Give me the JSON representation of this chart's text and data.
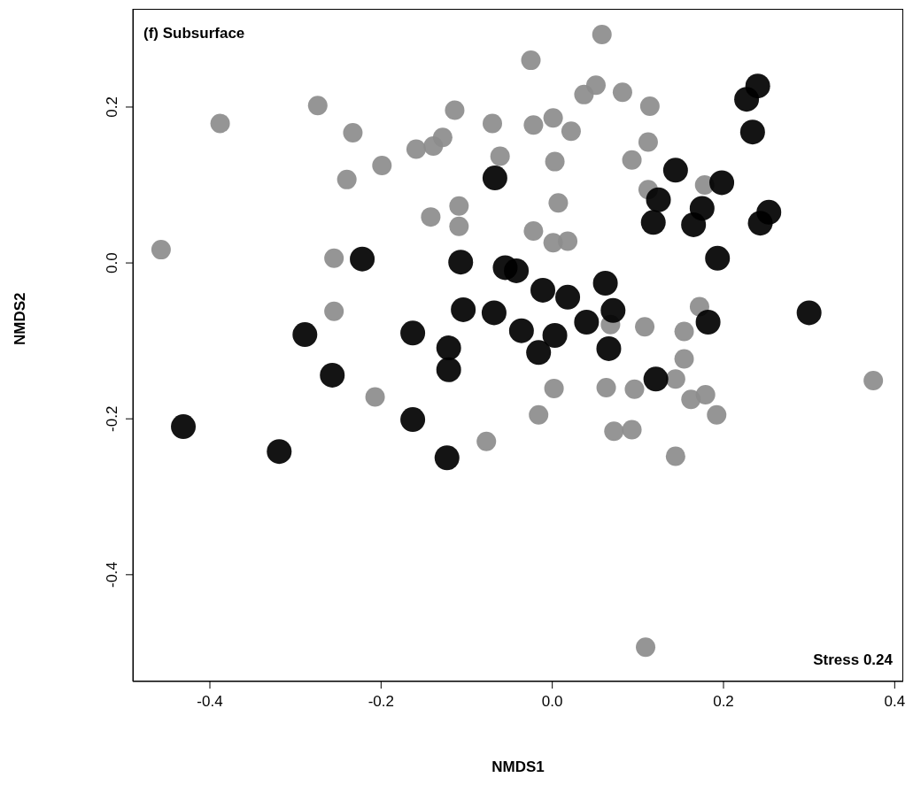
{
  "chart_data": {
    "type": "scatter",
    "title": "(f) Subsurface",
    "xlabel": "NMDS1",
    "ylabel": "NMDS2",
    "annotations": [
      "Stress 0.24"
    ],
    "marker": "circle",
    "xlim": [
      -0.49,
      0.41
    ],
    "ylim": [
      -0.537,
      0.326
    ],
    "xticks": [
      -0.4,
      -0.2,
      {
        "value": 0,
        "label": "0.0"
      },
      0.2,
      0.4
    ],
    "yticks": [
      -0.4,
      -0.2,
      {
        "value": 0,
        "label": "0.0"
      },
      0.2
    ],
    "series": [
      {
        "color": "#8c8c8c",
        "x": [
          -0.457,
          -0.388,
          -0.274,
          -0.233,
          -0.24,
          -0.199,
          -0.255,
          -0.255,
          -0.207,
          -0.159,
          -0.139,
          -0.128,
          -0.114,
          -0.142,
          -0.109,
          -0.109,
          -0.07,
          -0.061,
          -0.025,
          -0.022,
          0.001,
          0.003,
          0.007,
          0.022,
          -0.022,
          0.001,
          0.018,
          0.037,
          0.051,
          0.058,
          0.082,
          0.114,
          0.112,
          0.093,
          0.112,
          0.178,
          -0.077,
          -0.016,
          0.002,
          0.063,
          0.072,
          0.093,
          0.068,
          0.108,
          0.096,
          0.144,
          0.154,
          0.154,
          0.162,
          0.179,
          0.192,
          0.144,
          0.172,
          0.375,
          0.109
        ],
        "values": [
          0.017,
          0.179,
          0.202,
          0.167,
          0.107,
          0.125,
          0.006,
          -0.062,
          -0.172,
          0.146,
          0.15,
          0.161,
          0.196,
          0.059,
          0.073,
          0.047,
          0.179,
          0.137,
          0.26,
          0.177,
          0.186,
          0.13,
          0.077,
          0.169,
          0.041,
          0.026,
          0.028,
          0.216,
          0.228,
          0.293,
          0.219,
          0.201,
          0.155,
          0.132,
          0.094,
          0.1,
          -0.229,
          -0.195,
          -0.161,
          -0.16,
          -0.216,
          -0.214,
          -0.079,
          -0.082,
          -0.162,
          -0.149,
          -0.123,
          -0.088,
          -0.175,
          -0.169,
          -0.195,
          -0.248,
          -0.056,
          -0.151,
          -0.493
        ]
      },
      {
        "color": "#000000",
        "x": [
          -0.431,
          -0.319,
          -0.289,
          -0.257,
          -0.222,
          -0.163,
          -0.163,
          -0.121,
          -0.121,
          -0.123,
          -0.107,
          -0.104,
          -0.068,
          -0.067,
          -0.055,
          -0.042,
          -0.036,
          -0.011,
          -0.016,
          0.003,
          0.018,
          0.04,
          0.062,
          0.071,
          0.066,
          0.121,
          0.124,
          0.118,
          0.144,
          0.165,
          0.175,
          0.198,
          0.193,
          0.182,
          0.227,
          0.24,
          0.234,
          0.243,
          0.253,
          0.3
        ],
        "values": [
          -0.21,
          -0.242,
          -0.092,
          -0.144,
          0.005,
          -0.09,
          -0.201,
          -0.109,
          -0.137,
          -0.25,
          0.001,
          -0.06,
          -0.064,
          0.109,
          -0.006,
          -0.01,
          -0.087,
          -0.035,
          -0.115,
          -0.093,
          -0.044,
          -0.076,
          -0.026,
          -0.061,
          -0.11,
          -0.149,
          0.081,
          0.052,
          0.119,
          0.049,
          0.07,
          0.103,
          0.006,
          -0.076,
          0.21,
          0.227,
          0.168,
          0.051,
          0.065,
          -0.064
        ]
      }
    ]
  }
}
